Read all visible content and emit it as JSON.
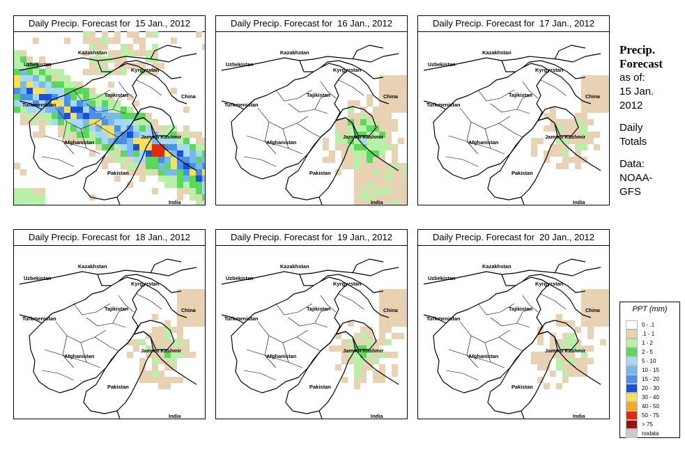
{
  "panels": [
    {
      "title": "Daily Precip. Forecast for  15 Jan., 2012",
      "intensity": 1.0
    },
    {
      "title": "Daily Precip. Forecast for  16 Jan., 2012",
      "intensity": 0.55
    },
    {
      "title": "Daily Precip. Forecast for  17 Jan., 2012",
      "intensity": 0.35
    },
    {
      "title": "Daily Precip. Forecast for  18 Jan., 2012",
      "intensity": 0.4
    },
    {
      "title": "Daily Precip. Forecast for  19 Jan., 2012",
      "intensity": 0.4
    },
    {
      "title": "Daily Precip. Forecast for  20 Jan., 2012",
      "intensity": 0.35
    }
  ],
  "map_labels": {
    "uzbekistan": "Uzbekistan",
    "kazakhstan": "Kazakhstan",
    "kyrgyzstan": "Kyrgyzstan",
    "tajikistan": "Tajikistan",
    "china": "China",
    "turkmenistan": "Turkmenistan",
    "afghanistan": "Afghanistan",
    "kashmir": "Jammu Kashmir",
    "pakistan": "Pakistan",
    "india": "India"
  },
  "side": {
    "title_line1": "Precip.",
    "title_line2": "Forecast",
    "asof_line1": "as of:",
    "asof_line2": "15 Jan.",
    "asof_line3": "2012",
    "totals_line1": "Daily",
    "totals_line2": "Totals",
    "data_line1": "Data:",
    "data_line2": "NOAA-",
    "data_line3": "GFS"
  },
  "legend": {
    "title": "PPT (mm)",
    "items": [
      {
        "label": "0 - .1",
        "color": "#ffffff"
      },
      {
        "label": ".1 - 1",
        "color": "#e8d2b4"
      },
      {
        "label": "1 - 2",
        "color": "#b8f0a8"
      },
      {
        "label": "2 - 5",
        "color": "#5ad85a"
      },
      {
        "label": "5 - 10",
        "color": "#a8d8f8"
      },
      {
        "label": "10 - 15",
        "color": "#78b8f0"
      },
      {
        "label": "15 - 20",
        "color": "#4890e8"
      },
      {
        "label": "20 - 30",
        "color": "#1850d8"
      },
      {
        "label": "30 - 40",
        "color": "#f8e058"
      },
      {
        "label": "40 - 50",
        "color": "#f8a818"
      },
      {
        "label": "50 - 75",
        "color": "#e82808"
      },
      {
        "label": "> 75",
        "color": "#a01010"
      },
      {
        "label": "nodata",
        "color": "#cccccc"
      }
    ]
  }
}
